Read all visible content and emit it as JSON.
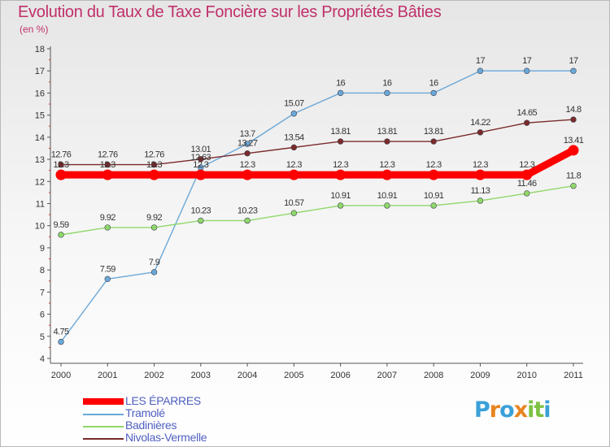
{
  "title": "Evolution du Taux de Taxe Foncière sur les Propriétés Bâties",
  "unit_label": "(en %)",
  "logo": {
    "text": [
      "P",
      "r",
      "o",
      "x",
      "i",
      "t",
      "i"
    ],
    "colors": [
      "#3aa0d8",
      "#e8841f",
      "#3aa0d8",
      "#e8841f",
      "#7cc242",
      "#7cc242",
      "#3aa0d8"
    ]
  },
  "chart_data": {
    "type": "line",
    "title": "Evolution du Taux de Taxe Foncière sur les Propriétés Bâties",
    "ylabel": "(en %)",
    "x": [
      "2000",
      "2001",
      "2002",
      "2003",
      "2004",
      "2005",
      "2006",
      "2007",
      "2008",
      "2009",
      "2010",
      "2011"
    ],
    "yticks": [
      "4",
      "5",
      "6",
      "7",
      "8",
      "9",
      "10",
      "11",
      "12",
      "13",
      "14",
      "15",
      "16",
      "17",
      "18"
    ],
    "ylim": [
      4,
      18
    ],
    "grid": false,
    "series": [
      {
        "name": "LES ÉPARRES",
        "color": "#ff0000",
        "values": [
          12.3,
          12.3,
          12.3,
          12.3,
          12.3,
          12.3,
          12.3,
          12.3,
          12.3,
          12.3,
          12.3,
          13.41
        ],
        "labels": [
          "12.3",
          "12.3",
          "12.3",
          "12.3",
          "12.3",
          "12.3",
          "12.3",
          "12.3",
          "12.3",
          "12.3",
          "12.3",
          "13.41"
        ]
      },
      {
        "name": "Tramolé",
        "color": "#6aa8d8",
        "values": [
          4.75,
          7.59,
          7.9,
          12.63,
          13.7,
          15.07,
          16,
          16,
          16,
          17,
          17,
          17
        ],
        "labels": [
          "4.75",
          "7.59",
          "7.9",
          "12.63",
          "13.7",
          "15.07",
          "16",
          "16",
          "16",
          "17",
          "17",
          "17"
        ]
      },
      {
        "name": "Badinières",
        "color": "#8fd86a",
        "values": [
          9.59,
          9.92,
          9.92,
          10.23,
          10.23,
          10.57,
          10.91,
          10.91,
          10.91,
          11.13,
          11.46,
          11.8
        ],
        "labels": [
          "9.59",
          "9.92",
          "9.92",
          "10.23",
          "10.23",
          "10.57",
          "10.91",
          "10.91",
          "10.91",
          "11.13",
          "11.46",
          "11.8"
        ]
      },
      {
        "name": "Nivolas-Vermelle",
        "color": "#7a2a2a",
        "values": [
          12.76,
          12.76,
          12.76,
          13.01,
          13.27,
          13.54,
          13.81,
          13.81,
          13.81,
          14.22,
          14.65,
          14.8
        ],
        "labels": [
          "12.76",
          "12.76",
          "12.76",
          "13.01",
          "13.27",
          "13.54",
          "13.81",
          "13.81",
          "13.81",
          "14.22",
          "14.65",
          "14.8"
        ]
      }
    ]
  }
}
